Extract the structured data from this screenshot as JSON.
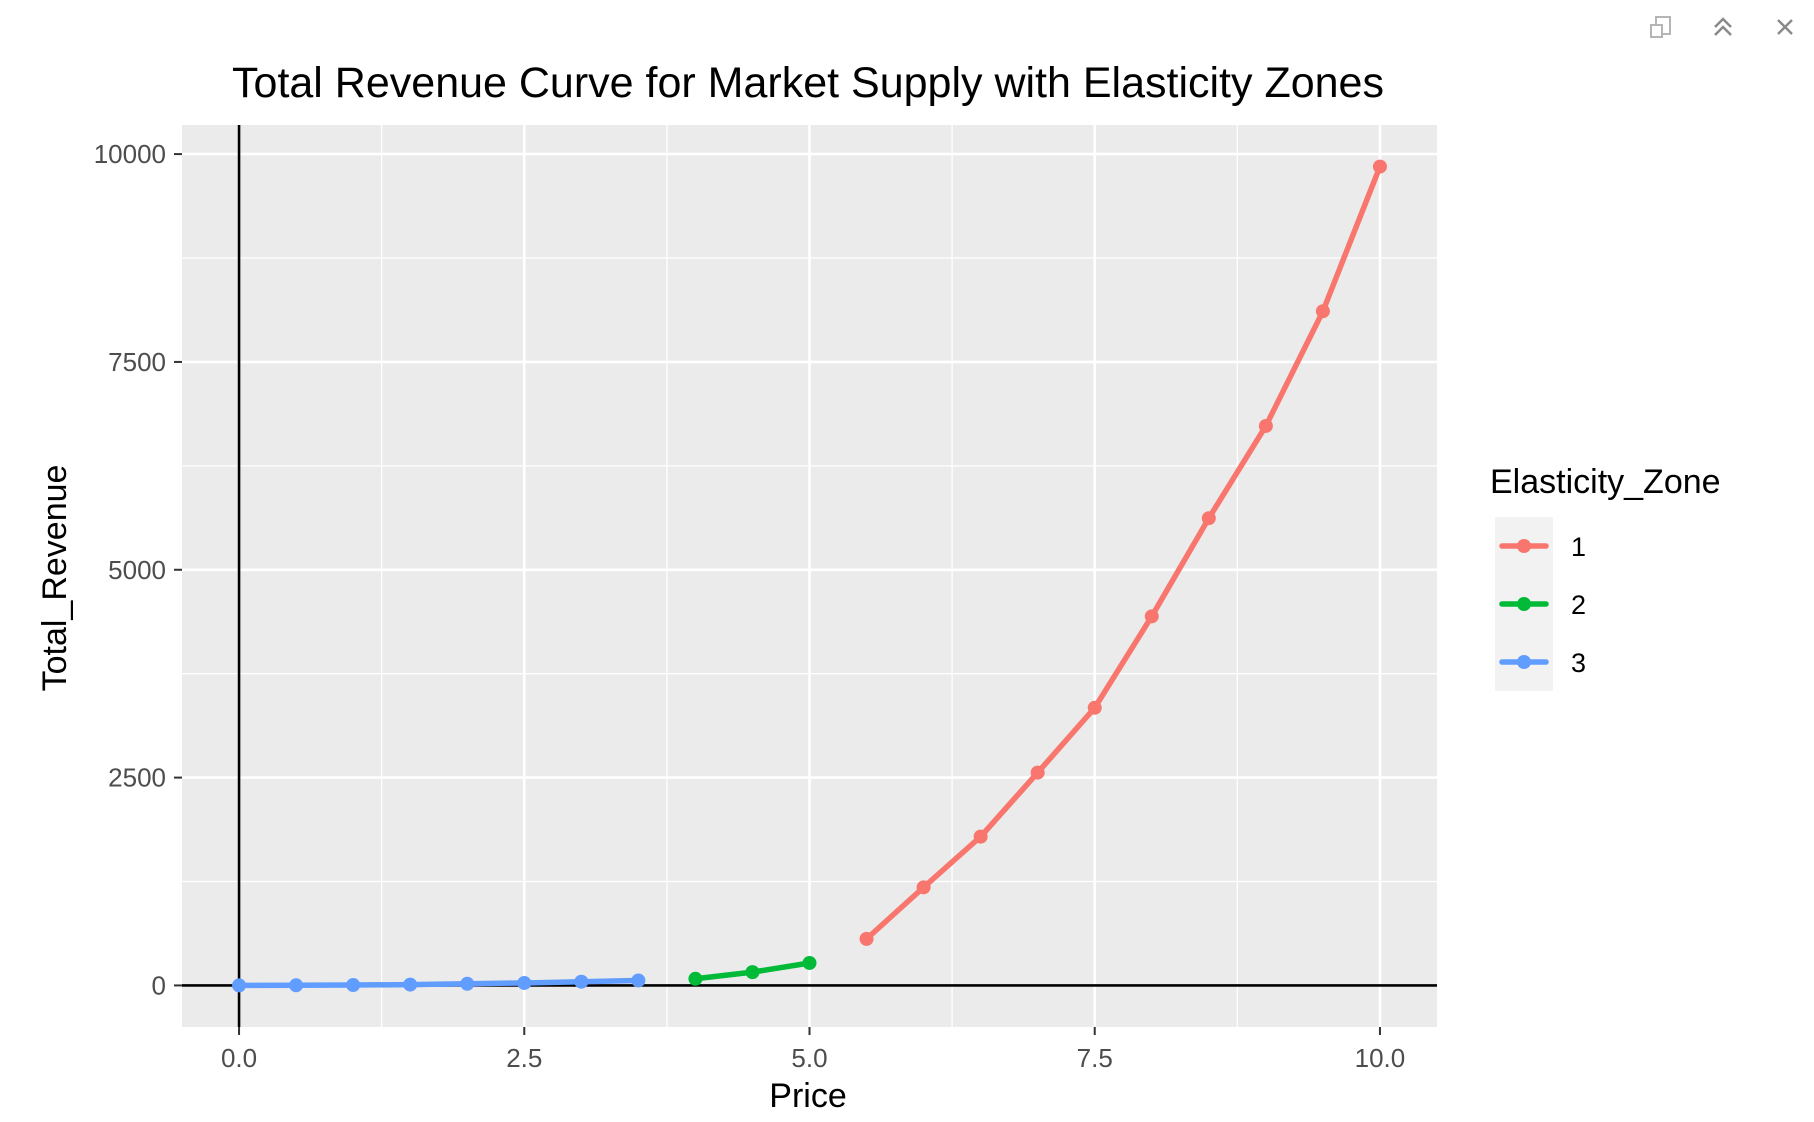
{
  "toolbar": {
    "icons": [
      "export-icon",
      "collapse-icon",
      "close-icon"
    ]
  },
  "chart_data": {
    "type": "line",
    "title": "Total Revenue Curve for Market Supply with Elasticity Zones",
    "xlabel": "Price",
    "ylabel": "Total_Revenue",
    "xlim": [
      -0.5,
      10.5
    ],
    "ylim": [
      -500,
      10350
    ],
    "x_ticks": [
      0,
      2.5,
      5,
      7.5,
      10
    ],
    "x_tick_labels": [
      "0.0",
      "2.5",
      "5.0",
      "7.5",
      "10.0"
    ],
    "y_ticks": [
      0,
      2500,
      5000,
      7500,
      10000
    ],
    "y_tick_labels": [
      "0",
      "2500",
      "5000",
      "7500",
      "10000"
    ],
    "grid": true,
    "reference_lines": {
      "x": 0,
      "y": 0
    },
    "legend": {
      "title": "Elasticity_Zone",
      "position": "right"
    },
    "series": [
      {
        "name": "1",
        "color": "#F8766D",
        "x": [
          5.5,
          6,
          6.5,
          7,
          7.5,
          8,
          8.5,
          9,
          9.5,
          10
        ],
        "y": [
          560,
          1180,
          1790,
          2560,
          3340,
          4440,
          5620,
          6730,
          8110,
          9850
        ]
      },
      {
        "name": "2",
        "color": "#00BA38",
        "x": [
          4,
          4.5,
          5
        ],
        "y": [
          80,
          160,
          270
        ]
      },
      {
        "name": "3",
        "color": "#619CFF",
        "x": [
          0,
          0.5,
          1,
          1.5,
          2,
          2.5,
          3,
          3.5
        ],
        "y": [
          0,
          2,
          5,
          10,
          20,
          30,
          45,
          60
        ]
      }
    ]
  }
}
